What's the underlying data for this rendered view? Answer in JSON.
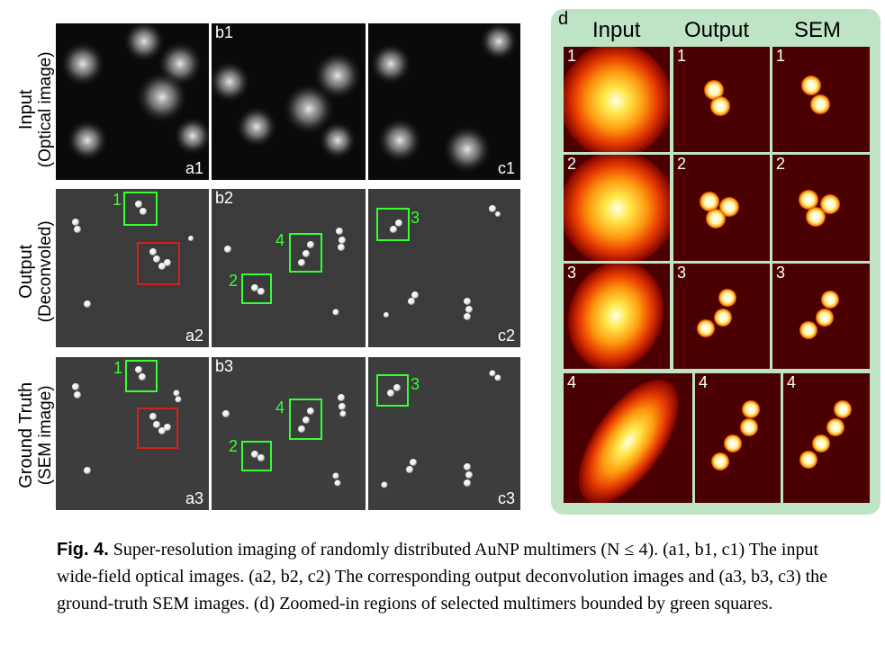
{
  "rows": [
    {
      "line1": "Input",
      "line2": "(Optical image)"
    },
    {
      "line1": "Output",
      "line2": "(Deconvoled)"
    },
    {
      "line1": "Ground Truth",
      "line2": "(SEM image)"
    }
  ],
  "panels": {
    "a1": "a1",
    "b1": "b1",
    "c1": "c1",
    "a2": "a2",
    "b2": "b2",
    "c2": "c2",
    "a3": "a3",
    "b3": "b3",
    "c3": "c3"
  },
  "markers": {
    "m1": "1",
    "m2": "2",
    "m3": "3",
    "m4": "4"
  },
  "zoom": {
    "label": "d",
    "headers": [
      "Input",
      "Output",
      "SEM"
    ],
    "numbers": [
      "1",
      "2",
      "3",
      "4"
    ]
  },
  "caption": {
    "fig_label": "Fig. 4.",
    "text": " Super-resolution imaging of randomly distributed AuNP multimers (N ≤ 4). (a1, b1, c1) The input wide-field optical images. (a2, b2, c2) The corresponding output deconvolution images and (a3, b3, c3) the ground-truth SEM images. (d) Zoomed-in regions of selected multimers bounded by green squares."
  },
  "colors": {
    "marker_green": "#33ff33",
    "box_red": "#d42020",
    "panel_d_bg": "#bfe3c5"
  }
}
